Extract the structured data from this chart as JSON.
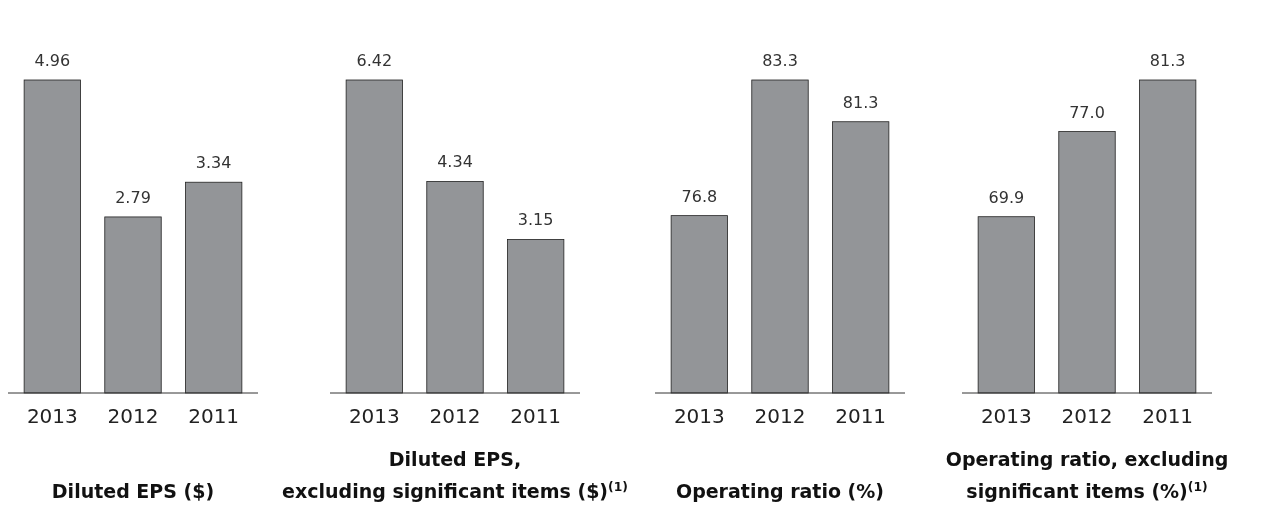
{
  "chart_data": [
    {
      "type": "bar",
      "title": "Diluted EPS ($)",
      "categories": [
        "2013",
        "2012",
        "2011"
      ],
      "values": [
        4.96,
        2.79,
        3.34
      ],
      "color": "#939598",
      "data_labels": true
    },
    {
      "type": "bar",
      "title": "Diluted EPS,\nexcluding significant items ($)$^{(1)}$",
      "categories": [
        "2013",
        "2012",
        "2011"
      ],
      "values": [
        6.42,
        4.34,
        3.15
      ],
      "color": "#939598",
      "data_labels": true
    },
    {
      "type": "bar",
      "title": "Operating ratio (%)",
      "categories": [
        "2013",
        "2012",
        "2011"
      ],
      "values": [
        76.8,
        83.3,
        81.3
      ],
      "color": "#939598",
      "ylim": [
        68.3,
        83.3
      ],
      "data_labels": true
    },
    {
      "type": "bar",
      "title": "Operating ratio, excluding\nsignificant items (%)$^{(1)}$",
      "categories": [
        "2013",
        "2012",
        "2011"
      ],
      "values": [
        69.9,
        77.0,
        81.3
      ],
      "color": "#939598",
      "ylim": [
        55.2,
        81.3
      ],
      "value_labels": [
        "69.9",
        "77.0",
        "81.3"
      ]
    }
  ]
}
